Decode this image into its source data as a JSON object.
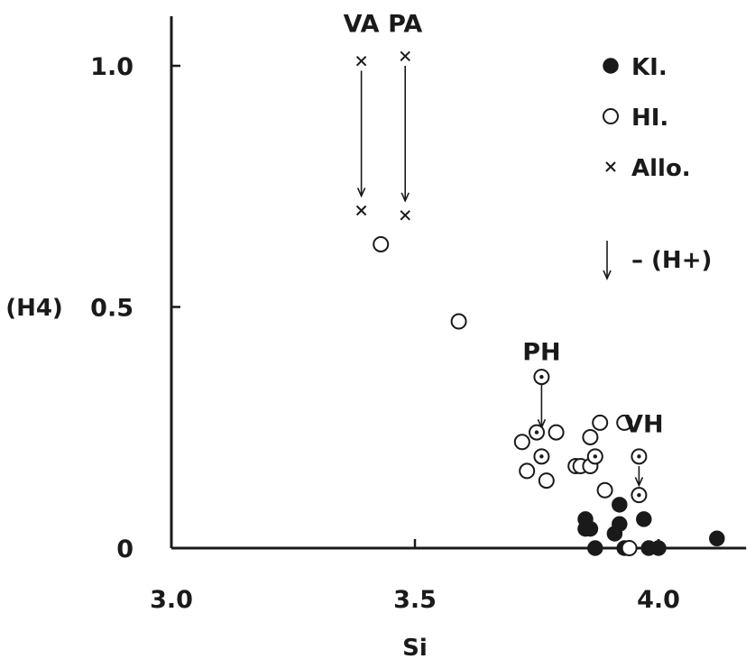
{
  "chart_data": {
    "type": "scatter",
    "xlabel": "Si",
    "ylabel": "(H4)",
    "xlim": [
      3.0,
      4.18
    ],
    "ylim": [
      0,
      1.1
    ],
    "x_ticks": [
      "3.0",
      "3.5",
      "4.0"
    ],
    "y_ticks": [
      "0",
      "0.5",
      "1.0"
    ],
    "legend_position": "top-right",
    "legend": [
      {
        "marker": "filled-circle",
        "label": "KI."
      },
      {
        "marker": "open-circle",
        "label": "HI."
      },
      {
        "marker": "cross",
        "label": "Allo."
      },
      {
        "marker": "down-arrow",
        "label": "– (H+)"
      }
    ],
    "series": [
      {
        "name": "KI.",
        "marker": "filled-circle",
        "points": [
          {
            "x": 3.85,
            "y": 0.06
          },
          {
            "x": 3.85,
            "y": 0.04
          },
          {
            "x": 3.86,
            "y": 0.04
          },
          {
            "x": 3.87,
            "y": 0.0
          },
          {
            "x": 3.91,
            "y": 0.03
          },
          {
            "x": 3.92,
            "y": 0.05
          },
          {
            "x": 3.92,
            "y": 0.09
          },
          {
            "x": 3.93,
            "y": 0.0
          },
          {
            "x": 3.97,
            "y": 0.06
          },
          {
            "x": 3.98,
            "y": 0.0
          },
          {
            "x": 4.0,
            "y": 0.0
          },
          {
            "x": 4.12,
            "y": 0.02
          }
        ]
      },
      {
        "name": "HI.",
        "marker": "open-circle",
        "points": [
          {
            "x": 3.43,
            "y": 0.63
          },
          {
            "x": 3.59,
            "y": 0.47
          },
          {
            "x": 3.72,
            "y": 0.22
          },
          {
            "x": 3.73,
            "y": 0.16
          },
          {
            "x": 3.77,
            "y": 0.14
          },
          {
            "x": 3.79,
            "y": 0.24
          },
          {
            "x": 3.83,
            "y": 0.17
          },
          {
            "x": 3.84,
            "y": 0.17
          },
          {
            "x": 3.86,
            "y": 0.17
          },
          {
            "x": 3.86,
            "y": 0.23
          },
          {
            "x": 3.88,
            "y": 0.26
          },
          {
            "x": 3.89,
            "y": 0.12
          },
          {
            "x": 3.93,
            "y": 0.26
          },
          {
            "x": 3.94,
            "y": 0.0
          }
        ]
      },
      {
        "name": "HI. (dotted)",
        "marker": "dotted-circle",
        "points": [
          {
            "x": 3.75,
            "y": 0.24
          },
          {
            "x": 3.76,
            "y": 0.19
          },
          {
            "x": 3.76,
            "y": 0.355
          },
          {
            "x": 3.87,
            "y": 0.19
          },
          {
            "x": 3.96,
            "y": 0.19
          },
          {
            "x": 3.96,
            "y": 0.11
          }
        ]
      },
      {
        "name": "Allo.",
        "marker": "cross",
        "points": [
          {
            "x": 3.39,
            "y": 1.01
          },
          {
            "x": 3.39,
            "y": 0.7
          },
          {
            "x": 3.48,
            "y": 1.02
          },
          {
            "x": 3.48,
            "y": 0.69
          }
        ]
      }
    ],
    "arrows": [
      {
        "from": {
          "x": 3.39,
          "y": 0.99
        },
        "to": {
          "x": 3.39,
          "y": 0.73
        }
      },
      {
        "from": {
          "x": 3.48,
          "y": 1.0
        },
        "to": {
          "x": 3.48,
          "y": 0.72
        }
      },
      {
        "from": {
          "x": 3.76,
          "y": 0.34
        },
        "to": {
          "x": 3.76,
          "y": 0.25
        }
      },
      {
        "from": {
          "x": 3.96,
          "y": 0.17
        },
        "to": {
          "x": 3.96,
          "y": 0.13
        }
      }
    ],
    "annotations": [
      {
        "text": "VA",
        "x": 3.39,
        "y": 1.07
      },
      {
        "text": "PA",
        "x": 3.48,
        "y": 1.07
      },
      {
        "text": "PH",
        "x": 3.76,
        "y": 0.39
      },
      {
        "text": "VH",
        "x": 3.97,
        "y": 0.24
      }
    ]
  }
}
